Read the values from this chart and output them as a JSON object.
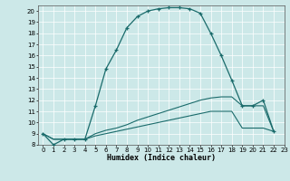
{
  "xlabel": "Humidex (Indice chaleur)",
  "bg_color": "#cce8e8",
  "line_color": "#1a6b6b",
  "xlim": [
    -0.5,
    23
  ],
  "ylim": [
    8,
    20.5
  ],
  "xticks": [
    0,
    1,
    2,
    3,
    4,
    5,
    6,
    7,
    8,
    9,
    10,
    11,
    12,
    13,
    14,
    15,
    16,
    17,
    18,
    19,
    20,
    21,
    22,
    23
  ],
  "yticks": [
    8,
    9,
    10,
    11,
    12,
    13,
    14,
    15,
    16,
    17,
    18,
    19,
    20
  ],
  "line1_x": [
    0,
    1,
    2,
    3,
    4,
    5,
    6,
    7,
    8,
    9,
    10,
    11,
    12,
    13,
    14,
    15,
    16,
    17,
    18,
    19,
    20,
    21,
    22
  ],
  "line1_y": [
    9,
    8,
    8.5,
    8.5,
    8.5,
    11.5,
    14.8,
    16.5,
    18.5,
    19.5,
    20.0,
    20.2,
    20.3,
    20.3,
    20.2,
    19.8,
    18.0,
    16.0,
    13.8,
    11.5,
    11.5,
    12.0,
    9.2
  ],
  "line2_x": [
    0,
    1,
    2,
    3,
    4,
    5,
    6,
    7,
    8,
    9,
    10,
    11,
    12,
    13,
    14,
    15,
    16,
    17,
    18,
    19,
    20,
    21,
    22
  ],
  "line2_y": [
    9.0,
    8.5,
    8.5,
    8.5,
    8.5,
    9.0,
    9.3,
    9.5,
    9.8,
    10.2,
    10.5,
    10.8,
    11.1,
    11.4,
    11.7,
    12.0,
    12.2,
    12.3,
    12.3,
    11.5,
    11.5,
    11.5,
    9.2
  ],
  "line3_x": [
    0,
    1,
    2,
    3,
    4,
    5,
    6,
    7,
    8,
    9,
    10,
    11,
    12,
    13,
    14,
    15,
    16,
    17,
    18,
    19,
    20,
    21,
    22
  ],
  "line3_y": [
    9.0,
    8.5,
    8.5,
    8.5,
    8.5,
    8.8,
    9.0,
    9.2,
    9.4,
    9.6,
    9.8,
    10.0,
    10.2,
    10.4,
    10.6,
    10.8,
    11.0,
    11.0,
    11.0,
    9.5,
    9.5,
    9.5,
    9.2
  ]
}
